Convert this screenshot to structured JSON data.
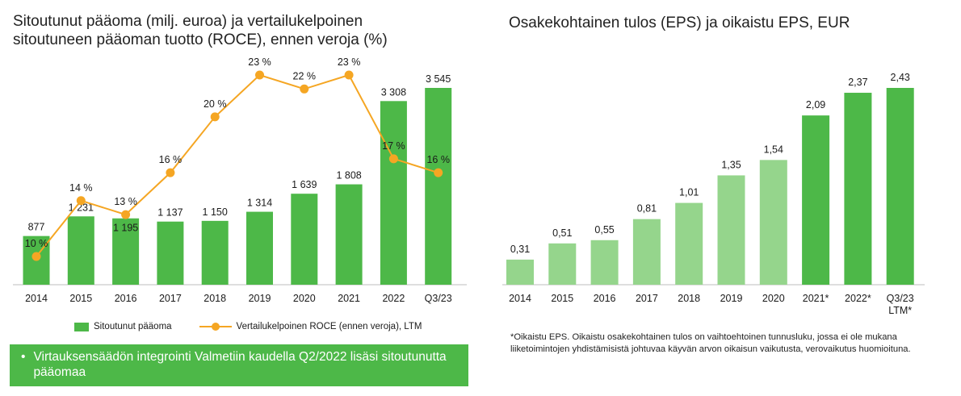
{
  "left": {
    "title_line1": "Sitoutunut pääoma (milj. euroa) ja vertailukelpoinen",
    "title_line2": "sitoutuneen pääoman tuotto (ROCE), ennen veroja (%)",
    "legend_bar": "Sitoutunut pääoma",
    "legend_line": "Vertailukelpoinen ROCE (ennen veroja), LTM",
    "note": "Virtauksensäädön integrointi Valmetiin kaudella Q2/2022 lisäsi sitoutunutta pääomaa"
  },
  "right": {
    "title": "Osakekohtainen tulos (EPS) ja oikaistu EPS, EUR",
    "footnote": "*Oikaistu EPS. Oikaistu osakekohtainen tulos on vaihtoehtoinen tunnusluku, jossa ei ole mukana liiketoimintojen yhdistämisistä johtuvaa käyvän arvon oikaisun vaikutusta, verovaikutus huomioituna."
  },
  "colors": {
    "bar_dark": "#4db848",
    "bar_light": "#95d58c",
    "line": "#f5a623"
  },
  "chart_data": [
    {
      "type": "bar",
      "title": "Sitoutunut pääoma (milj. euroa) ja vertailukelpoinen sitoutuneen pääoman tuotto (ROCE), ennen veroja (%)",
      "categories": [
        "2014",
        "2015",
        "2016",
        "2017",
        "2018",
        "2019",
        "2020",
        "2021",
        "2022",
        "Q3/23"
      ],
      "series": [
        {
          "name": "Sitoutunut pääoma",
          "type": "bar",
          "values": [
            877,
            1231,
            1195,
            1137,
            1150,
            1314,
            1639,
            1808,
            3308,
            3545
          ],
          "labels": [
            "877",
            "1 231",
            "1 195",
            "1 137",
            "1 150",
            "1 314",
            "1 639",
            "1 808",
            "3 308",
            "3 545"
          ]
        },
        {
          "name": "Vertailukelpoinen ROCE (ennen veroja), LTM",
          "type": "line",
          "values": [
            10,
            14,
            13,
            16,
            20,
            23,
            22,
            23,
            17,
            16
          ],
          "labels": [
            "10 %",
            "14 %",
            "13 %",
            "16 %",
            "20 %",
            "23 %",
            "22 %",
            "23 %",
            "17 %",
            "16 %"
          ]
        }
      ],
      "legend": "bottom"
    },
    {
      "type": "bar",
      "title": "Osakekohtainen tulos (EPS) ja oikaistu EPS, EUR",
      "categories": [
        "2014",
        "2015",
        "2016",
        "2017",
        "2018",
        "2019",
        "2020",
        "2021*",
        "2022*",
        "Q3/23 LTM*"
      ],
      "values": [
        0.31,
        0.51,
        0.55,
        0.81,
        1.01,
        1.35,
        1.54,
        2.09,
        2.37,
        2.43
      ],
      "labels": [
        "0,31",
        "0,51",
        "0,55",
        "0,81",
        "1,01",
        "1,35",
        "1,54",
        "2,09",
        "2,37",
        "2,43"
      ],
      "highlight_from_index": 7
    }
  ]
}
